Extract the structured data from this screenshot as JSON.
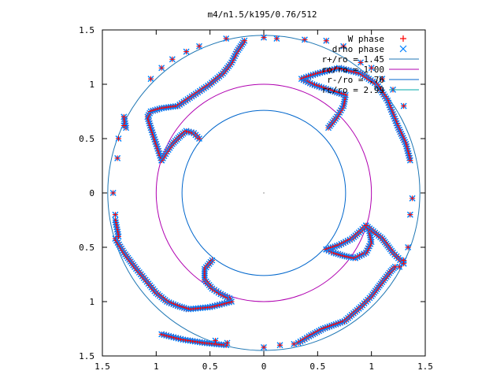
{
  "chart_data": {
    "type": "scatter",
    "title": "m4/n1.5/k195/0.76/512",
    "xlabel": "",
    "ylabel": "",
    "xlim": [
      -1.5,
      1.5
    ],
    "ylim": [
      -1.5,
      1.5
    ],
    "x_ticks": [
      -1.5,
      -1,
      -0.5,
      0,
      0.5,
      1,
      1.5
    ],
    "y_ticks": [
      -1.5,
      -1,
      -0.5,
      0,
      0.5,
      1,
      1.5
    ],
    "x_tick_labels": [
      "1.5",
      "1",
      "0.5",
      "0",
      "0.5",
      "1",
      "1.5"
    ],
    "y_tick_labels": [
      "1.5",
      "1",
      "0.5",
      "0",
      "0.5",
      "1",
      "1.5"
    ],
    "grid": false,
    "legend": "top-right",
    "series": [
      {
        "name": "W phase",
        "marker": "plus",
        "color": "#ff0000"
      },
      {
        "name": "drho phase",
        "marker": "cross",
        "color": "#0080ff"
      },
      {
        "name": "r+/ro = 1.45",
        "kind": "circle",
        "radius": 1.45,
        "color": "#1f77b4"
      },
      {
        "name": "ro/ro = 1.00",
        "kind": "circle",
        "radius": 1.0,
        "color": "#b000b0"
      },
      {
        "name": "r-/ro = .76",
        "kind": "circle",
        "radius": 0.76,
        "color": "#0066cc"
      },
      {
        "name": "rc/ro = 2.99",
        "kind": "circle",
        "radius": 2.99,
        "color": "#00aaaa"
      }
    ],
    "phase_paths": [
      [
        [
          -0.95,
          0.3
        ],
        [
          -1.0,
          0.45
        ],
        [
          -1.05,
          0.6
        ],
        [
          -1.08,
          0.7
        ],
        [
          -1.05,
          0.75
        ],
        [
          -0.95,
          0.78
        ],
        [
          -0.8,
          0.8
        ],
        [
          -0.65,
          0.9
        ],
        [
          -0.5,
          1.0
        ],
        [
          -0.38,
          1.1
        ],
        [
          -0.3,
          1.2
        ],
        [
          -0.25,
          1.3
        ],
        [
          -0.18,
          1.4
        ]
      ],
      [
        [
          -0.95,
          0.3
        ],
        [
          -0.9,
          0.38
        ],
        [
          -0.85,
          0.45
        ],
        [
          -0.78,
          0.52
        ],
        [
          -0.72,
          0.57
        ],
        [
          -0.65,
          0.55
        ],
        [
          -0.6,
          0.5
        ]
      ],
      [
        [
          0.6,
          0.6
        ],
        [
          0.68,
          0.7
        ],
        [
          0.74,
          0.8
        ],
        [
          0.76,
          0.9
        ],
        [
          0.6,
          0.95
        ],
        [
          0.45,
          1.0
        ],
        [
          0.35,
          1.05
        ],
        [
          0.5,
          1.1
        ],
        [
          0.7,
          1.15
        ],
        [
          0.9,
          1.1
        ],
        [
          1.05,
          1.0
        ],
        [
          1.15,
          0.85
        ],
        [
          1.25,
          0.6
        ],
        [
          1.32,
          0.45
        ],
        [
          1.36,
          0.3
        ]
      ],
      [
        [
          0.58,
          -0.52
        ],
        [
          0.65,
          -0.55
        ],
        [
          0.75,
          -0.58
        ],
        [
          0.85,
          -0.6
        ],
        [
          0.95,
          -0.55
        ],
        [
          1.0,
          -0.45
        ],
        [
          0.98,
          -0.35
        ],
        [
          0.95,
          -0.3
        ],
        [
          1.1,
          -0.42
        ],
        [
          1.2,
          -0.55
        ],
        [
          1.3,
          -0.65
        ]
      ],
      [
        [
          0.58,
          -0.52
        ],
        [
          0.7,
          -0.48
        ],
        [
          0.82,
          -0.42
        ],
        [
          0.9,
          -0.35
        ],
        [
          0.95,
          -0.3
        ]
      ],
      [
        [
          0.32,
          -1.38
        ],
        [
          0.42,
          -1.32
        ],
        [
          0.55,
          -1.25
        ],
        [
          0.75,
          -1.18
        ],
        [
          0.9,
          -1.05
        ],
        [
          1.0,
          -0.95
        ],
        [
          1.1,
          -0.82
        ],
        [
          1.18,
          -0.72
        ],
        [
          1.22,
          -0.68
        ]
      ],
      [
        [
          -0.48,
          -0.62
        ],
        [
          -0.55,
          -0.7
        ],
        [
          -0.55,
          -0.8
        ],
        [
          -0.48,
          -0.88
        ],
        [
          -0.4,
          -0.93
        ],
        [
          -0.32,
          -0.97
        ],
        [
          -0.3,
          -1.0
        ],
        [
          -0.5,
          -1.05
        ],
        [
          -0.7,
          -1.07
        ],
        [
          -0.8,
          -1.04
        ],
        [
          -0.9,
          -1.0
        ],
        [
          -1.0,
          -0.92
        ],
        [
          -1.1,
          -0.8
        ],
        [
          -1.2,
          -0.68
        ],
        [
          -1.3,
          -0.55
        ],
        [
          -1.38,
          -0.42
        ]
      ],
      [
        [
          -1.38,
          -0.25
        ],
        [
          -1.35,
          -0.4
        ]
      ],
      [
        [
          -1.28,
          0.6
        ],
        [
          -1.3,
          0.7
        ]
      ],
      [
        [
          -0.95,
          -1.3
        ],
        [
          -0.75,
          -1.35
        ],
        [
          -0.55,
          -1.38
        ],
        [
          -0.35,
          -1.4
        ]
      ]
    ],
    "scattered_points": [
      [
        -1.4,
        0.0
      ],
      [
        -1.38,
        -0.2
      ],
      [
        -1.36,
        0.32
      ],
      [
        -1.35,
        0.5
      ],
      [
        -1.3,
        0.62
      ],
      [
        -0.35,
        1.42
      ],
      [
        0.0,
        1.43
      ],
      [
        0.12,
        1.42
      ],
      [
        0.38,
        1.41
      ],
      [
        0.58,
        1.4
      ],
      [
        0.74,
        1.35
      ],
      [
        1.38,
        -0.05
      ],
      [
        1.36,
        -0.2
      ],
      [
        1.34,
        -0.5
      ],
      [
        1.3,
        -0.62
      ],
      [
        1.26,
        -0.68
      ],
      [
        0.0,
        -1.42
      ],
      [
        -0.34,
        -1.38
      ],
      [
        -0.45,
        -1.36
      ],
      [
        0.15,
        -1.4
      ],
      [
        0.28,
        -1.39
      ],
      [
        -0.6,
        1.35
      ],
      [
        -0.72,
        1.3
      ],
      [
        -0.85,
        1.23
      ],
      [
        -0.95,
        1.15
      ],
      [
        -1.05,
        1.05
      ],
      [
        0.9,
        1.2
      ],
      [
        1.0,
        1.15
      ],
      [
        1.1,
        1.05
      ],
      [
        1.2,
        0.95
      ],
      [
        1.3,
        0.8
      ]
    ]
  }
}
